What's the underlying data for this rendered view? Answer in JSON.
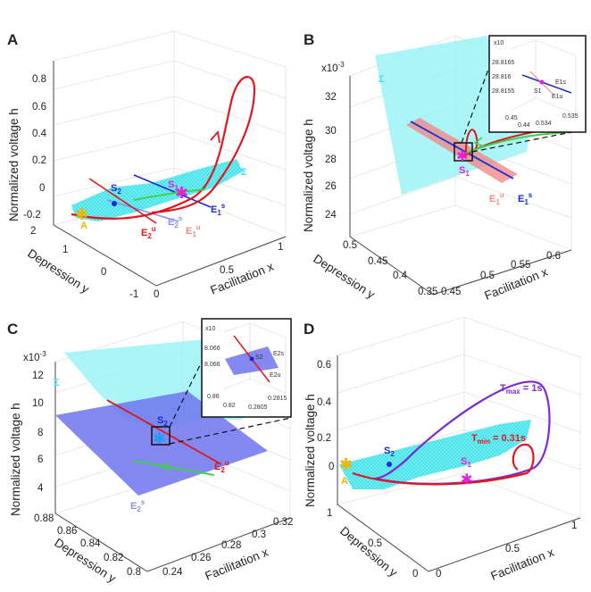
{
  "panels": {
    "A": {
      "letter": "A",
      "zlabel": "Normalized voltage h",
      "ylabel": "Depression y",
      "xlabel": "Facilitation x",
      "zticks": [
        "0.8",
        "0.6",
        "0.4",
        "0.2",
        "0",
        "-0.2"
      ],
      "yticks": [
        "2",
        "1",
        "0",
        "-1"
      ],
      "xticks": [
        "0",
        "0.5",
        "1"
      ],
      "annotations": {
        "S2": "S",
        "S2sub": "2",
        "S1": "S",
        "S1sub": "1",
        "E1s": "E",
        "E1s_sub": "1",
        "E1s_sup": "s",
        "E2u": "E",
        "E2u_sub": "2",
        "E2u_sup": "u",
        "E2s": "E",
        "E2s_sub": "2",
        "E2s_sup": "s",
        "E1u": "E",
        "E1u_sub": "1",
        "E1u_sup": "u",
        "A": "A",
        "Sigma": "Σ"
      }
    },
    "B": {
      "letter": "B",
      "zlabel": "Normalized voltage h",
      "ylabel": "Depression y",
      "xlabel": "Facilitation x",
      "zscale": "x10",
      "zscale_exp": "-3",
      "zticks": [
        "32",
        "30",
        "28",
        "26",
        "24"
      ],
      "yticks": [
        "0.5",
        "0.45",
        "0.4",
        "0.35"
      ],
      "xticks": [
        "0.45",
        "0.5",
        "0.55",
        "0.6"
      ],
      "annotations": {
        "Sigma": "Σ",
        "S1": "S",
        "S1sub": "1",
        "E1u": "E",
        "E1u_sub": "1",
        "E1u_sup": "u",
        "E1s": "E",
        "E1s_sub": "1",
        "E1s_sup": "s"
      },
      "inset": {
        "scale": "x10",
        "zticks": [
          "28.8165",
          "28.816",
          "28.8155"
        ],
        "xticks1": [
          "0.45",
          "0.44"
        ],
        "xticks2": [
          "0.534",
          "0.535"
        ],
        "S1": "S1",
        "E1s": "E1s",
        "E1u": "E1u"
      }
    },
    "C": {
      "letter": "C",
      "zlabel": "Normalized voltage h",
      "ylabel": "Depression y",
      "xlabel": "Facilitation x",
      "zscale": "x10",
      "zscale_exp": "-3",
      "zticks": [
        "12",
        "10",
        "8",
        "6",
        "4"
      ],
      "yticks": [
        "0.88",
        "0.86",
        "0.84",
        "0.82",
        "0.8"
      ],
      "xticks": [
        "0.24",
        "0.26",
        "0.28",
        "0.3",
        "0.32"
      ],
      "annotations": {
        "Sigma": "Σ",
        "S2": "S",
        "S2sub": "2",
        "E2u": "E",
        "E2u_sub": "2",
        "E2u_sup": "u",
        "E2s": "E",
        "E2s_sub": "2",
        "E2s_sup": "s"
      },
      "inset": {
        "scale": "x10",
        "zticks": [
          "8.066",
          "8.066"
        ],
        "xticks1": [
          "0.86",
          "0.82"
        ],
        "xticks2": [
          "0.2805",
          "0.2815"
        ],
        "S2": "S2",
        "E2s": "E2s",
        "E2u": "E2u"
      }
    },
    "D": {
      "letter": "D",
      "zlabel": "Normalized voltage h",
      "ylabel": "Depression y",
      "xlabel": "Facilitation x",
      "zticks": [
        "0.6",
        "0.4",
        "0.2",
        "0"
      ],
      "yticks": [
        "1",
        "0.5",
        "0"
      ],
      "xticks": [
        "0",
        "0.5",
        "1"
      ],
      "annotations": {
        "Tmax": "T",
        "Tmax_sub": "max",
        "Tmax_val": " = 1s",
        "Tmin": "T",
        "Tmin_sub": "min",
        "Tmin_val": " = 0.31s",
        "S2": "S",
        "S2sub": "2",
        "S1": "S",
        "S1sub": "1",
        "A": "A"
      }
    }
  },
  "colors": {
    "cyan": "#5fe8ee",
    "red": "#e0161c",
    "blue": "#1a2ad4",
    "green": "#3fd14a",
    "magenta": "#e81fd8",
    "purple": "#7a2ad6",
    "orange": "#f5b400",
    "pink": "#f08a8a",
    "lavender": "#8a8ef4",
    "plane_blue": "#6f74f0"
  }
}
